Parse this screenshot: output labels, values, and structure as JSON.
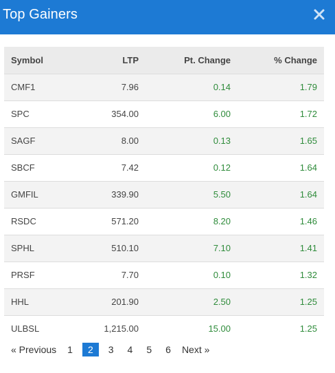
{
  "modal": {
    "title": "Top Gainers",
    "close_icon": "close-icon"
  },
  "table": {
    "headers": [
      "Symbol",
      "LTP",
      "Pt. Change",
      "% Change"
    ],
    "rows": [
      [
        "CMF1",
        "7.96",
        "0.14",
        "1.79"
      ],
      [
        "SPC",
        "354.00",
        "6.00",
        "1.72"
      ],
      [
        "SAGF",
        "8.00",
        "0.13",
        "1.65"
      ],
      [
        "SBCF",
        "7.42",
        "0.12",
        "1.64"
      ],
      [
        "GMFIL",
        "339.90",
        "5.50",
        "1.64"
      ],
      [
        "RSDC",
        "571.20",
        "8.20",
        "1.46"
      ],
      [
        "SPHL",
        "510.10",
        "7.10",
        "1.41"
      ],
      [
        "PRSF",
        "7.70",
        "0.10",
        "1.32"
      ],
      [
        "HHL",
        "201.90",
        "2.50",
        "1.25"
      ],
      [
        "ULBSL",
        "1,215.00",
        "15.00",
        "1.25"
      ]
    ]
  },
  "pagination": {
    "previous": "« Previous",
    "next": "Next »",
    "pages": [
      "1",
      "2",
      "3",
      "4",
      "5",
      "6"
    ],
    "current": "2"
  },
  "colors": {
    "header_bg": "#1d7ad4",
    "positive": "#2e8b3a",
    "active_page": "#1d7ad4"
  }
}
